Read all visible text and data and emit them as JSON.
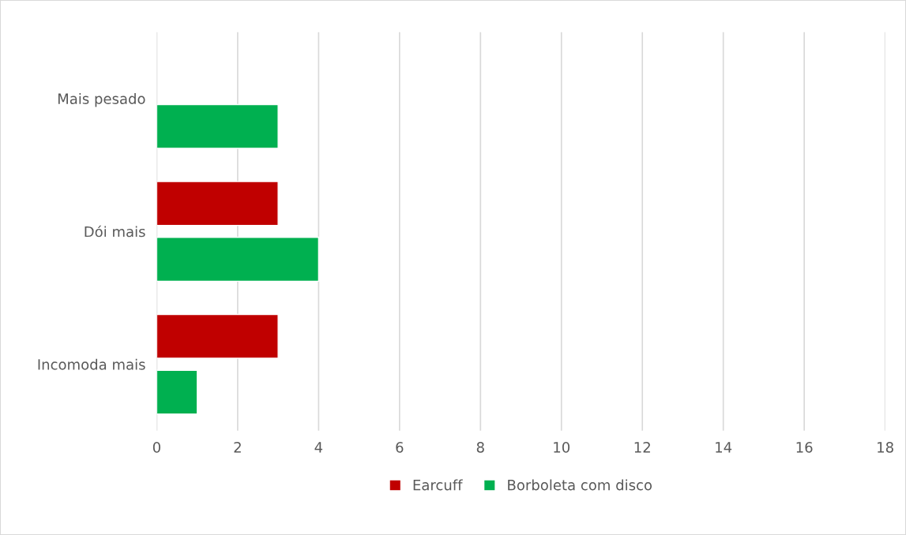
{
  "chart_data": {
    "type": "bar",
    "orientation": "horizontal",
    "categories": [
      "Mais pesado",
      "Dói mais",
      "Incomoda mais"
    ],
    "series": [
      {
        "name": "Earcuff",
        "color": "#c00000",
        "values": [
          null,
          3,
          3
        ]
      },
      {
        "name": "Borboleta com disco",
        "color": "#00b050",
        "values": [
          3,
          4,
          1
        ]
      }
    ],
    "xlim": [
      0,
      18
    ],
    "xticks": [
      0,
      2,
      4,
      6,
      8,
      10,
      12,
      14,
      16,
      18
    ],
    "grid": "x",
    "legend": "bottom"
  }
}
